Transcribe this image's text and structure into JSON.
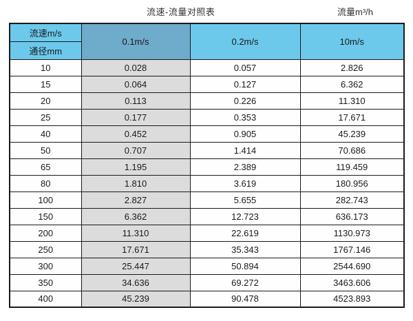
{
  "titles": {
    "left": "流速-流量对照表",
    "right": "流量m³/h"
  },
  "table": {
    "corner": {
      "top": "流速m/s",
      "bottom": "通径mm"
    },
    "velocity_columns": [
      "0.1m/s",
      "0.2m/s",
      "10m/s"
    ],
    "rows": [
      {
        "diameter": "10",
        "values": [
          "0.028",
          "0.057",
          "2.826"
        ]
      },
      {
        "diameter": "15",
        "values": [
          "0.064",
          "0.127",
          "6.362"
        ]
      },
      {
        "diameter": "20",
        "values": [
          "0.113",
          "0.226",
          "11.310"
        ]
      },
      {
        "diameter": "25",
        "values": [
          "0.177",
          "0.353",
          "17.671"
        ]
      },
      {
        "diameter": "40",
        "values": [
          "0.452",
          "0.905",
          "45.239"
        ]
      },
      {
        "diameter": "50",
        "values": [
          "0.707",
          "1.414",
          "70.686"
        ]
      },
      {
        "diameter": "65",
        "values": [
          "1.195",
          "2.389",
          "119.459"
        ]
      },
      {
        "diameter": "80",
        "values": [
          "1.810",
          "3.619",
          "180.956"
        ]
      },
      {
        "diameter": "100",
        "values": [
          "2.827",
          "5.655",
          "282.743"
        ]
      },
      {
        "diameter": "150",
        "values": [
          "6.362",
          "12.723",
          "636.173"
        ]
      },
      {
        "diameter": "200",
        "values": [
          "11.310",
          "22.619",
          "1130.973"
        ]
      },
      {
        "diameter": "250",
        "values": [
          "17.671",
          "35.343",
          "1767.146"
        ]
      },
      {
        "diameter": "300",
        "values": [
          "25.447",
          "50.894",
          "2544.690"
        ]
      },
      {
        "diameter": "350",
        "values": [
          "34.636",
          "69.272",
          "3463.606"
        ]
      },
      {
        "diameter": "400",
        "values": [
          "45.239",
          "90.478",
          "4523.893"
        ]
      }
    ]
  },
  "colors": {
    "header_blue": "#6cc9ec",
    "header_dark_blue": "#6fabcb",
    "col1_gray": "#dcdcdc",
    "border_color": "#1a1a1a"
  },
  "chart_data": {
    "type": "table",
    "title": "流速-流量对照表",
    "unit_label": "流量m³/h",
    "column_header": "流速m/s",
    "row_header": "通径mm",
    "columns": [
      "0.1m/s",
      "0.2m/s",
      "10m/s"
    ],
    "diameters_mm": [
      10,
      15,
      20,
      25,
      40,
      50,
      65,
      80,
      100,
      150,
      200,
      250,
      300,
      350,
      400
    ],
    "series": [
      {
        "name": "0.1m/s",
        "values": [
          0.028,
          0.064,
          0.113,
          0.177,
          0.452,
          0.707,
          1.195,
          1.81,
          2.827,
          6.362,
          11.31,
          17.671,
          25.447,
          34.636,
          45.239
        ]
      },
      {
        "name": "0.2m/s",
        "values": [
          0.057,
          0.127,
          0.226,
          0.353,
          0.905,
          1.414,
          2.389,
          3.619,
          5.655,
          12.723,
          22.619,
          35.343,
          50.894,
          69.272,
          90.478
        ]
      },
      {
        "name": "10m/s",
        "values": [
          2.826,
          6.362,
          11.31,
          17.671,
          45.239,
          70.686,
          119.459,
          180.956,
          282.743,
          636.173,
          1130.973,
          1767.146,
          2544.69,
          3463.606,
          4523.893
        ]
      }
    ]
  }
}
